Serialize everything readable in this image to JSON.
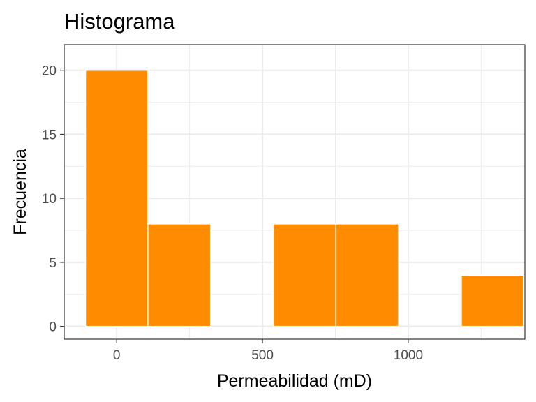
{
  "chart_data": {
    "type": "histogram",
    "title": "Histograma",
    "xlabel": "Permeabilidad (mD)",
    "ylabel": "Frecuencia",
    "xlim": [
      -180,
      1400
    ],
    "ylim": [
      -1,
      22
    ],
    "x_ticks": [
      0,
      500,
      1000
    ],
    "x_tick_labels": [
      "0",
      "500",
      "1000"
    ],
    "y_ticks": [
      0,
      5,
      10,
      15,
      20
    ],
    "y_tick_labels": [
      "0",
      "5",
      "10",
      "15",
      "20"
    ],
    "grid": true,
    "bar_color": "#FF8C00",
    "bins": [
      {
        "start": -107,
        "end": 107,
        "count": 20
      },
      {
        "start": 107,
        "end": 322,
        "count": 8
      },
      {
        "start": 322,
        "end": 537,
        "count": 0
      },
      {
        "start": 537,
        "end": 752,
        "count": 8
      },
      {
        "start": 752,
        "end": 967,
        "count": 8
      },
      {
        "start": 967,
        "end": 1182,
        "count": 0
      },
      {
        "start": 1182,
        "end": 1397,
        "count": 4
      }
    ]
  }
}
